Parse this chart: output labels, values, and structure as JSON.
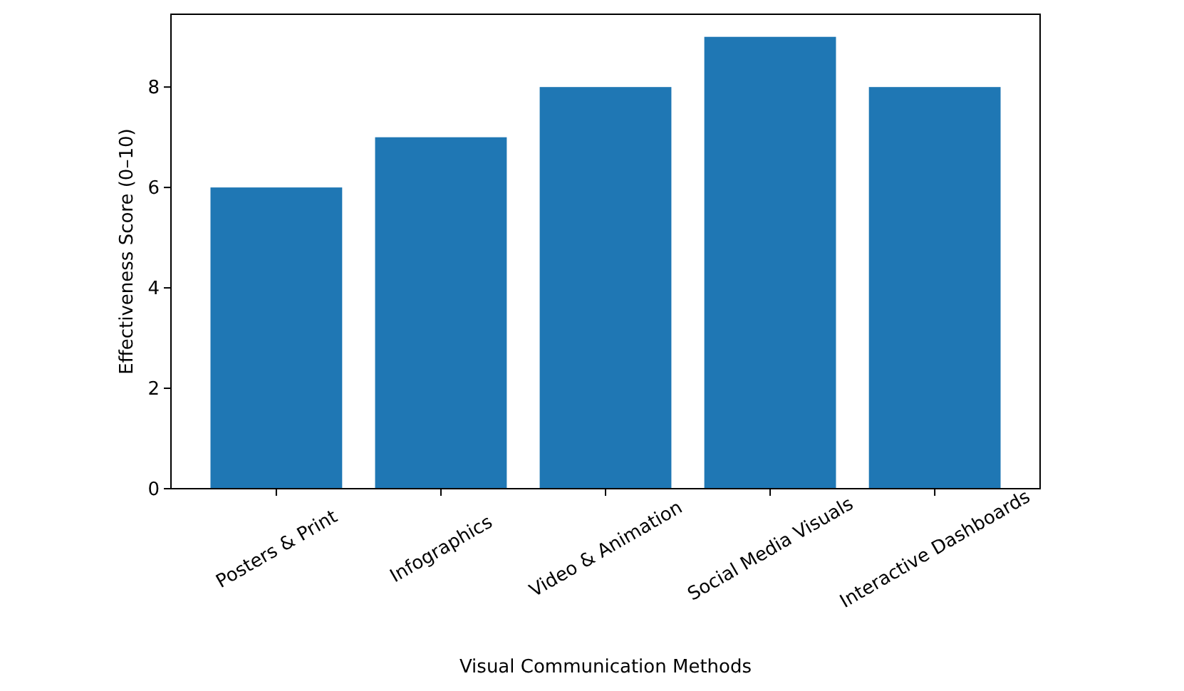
{
  "chart_data": {
    "type": "bar",
    "xlabel": "Visual Communication Methods",
    "ylabel": "Effectiveness Score (0–10)",
    "categories": [
      "Posters & Print",
      "Infographics",
      "Video & Animation",
      "Social Media Visuals",
      "Interactive Dashboards"
    ],
    "values": [
      6,
      7,
      8,
      9,
      8
    ],
    "color": "#1f77b4",
    "ylim": [
      0,
      9.45
    ],
    "yticks": [
      0,
      2,
      4,
      6,
      8
    ],
    "grid": false
  }
}
